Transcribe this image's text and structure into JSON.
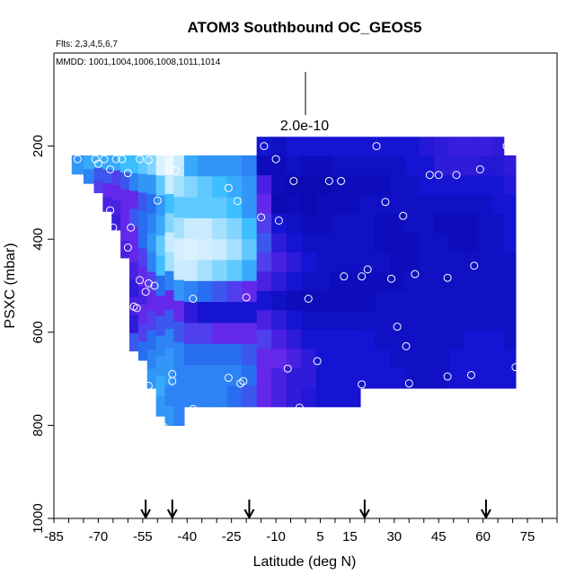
{
  "chart_data": {
    "type": "heatmap",
    "title": "ATOM3 Southbound OC_GEOS5",
    "subtitle_flights": "Flts: 2,3,4,5,6,7",
    "subtitle_dates": "MMDD: 1001,1004,1006,1008,1011,1014",
    "xlabel": "Latitude (deg N)",
    "ylabel": "PSXC (mbar)",
    "xlim": [
      -85,
      85
    ],
    "ylim": [
      1000,
      0
    ],
    "x_ticks": [
      -85,
      -70,
      -55,
      -40,
      -25,
      -10,
      5,
      15,
      30,
      45,
      60,
      75
    ],
    "x_tick_labels": [
      "-85",
      "-70",
      "-55",
      "-40",
      "-25",
      "-10",
      "5",
      "15",
      "30",
      "45",
      "60",
      "75"
    ],
    "x_minor_step": 5,
    "y_ticks": [
      200,
      400,
      600,
      800,
      1000
    ],
    "y_tick_labels": [
      "200",
      "400",
      "600",
      "800",
      "1000"
    ],
    "scale_label": "2.0e-10",
    "arrows_lat": [
      -54,
      -45,
      -19,
      20,
      61
    ],
    "columns": [
      {
        "lat": -77,
        "top": 220,
        "bottom": 260,
        "vals": [
          0.55
        ]
      },
      {
        "lat": -73,
        "top": 220,
        "bottom": 280,
        "vals": [
          0.6,
          0.5
        ]
      },
      {
        "lat": -70,
        "top": 220,
        "bottom": 300,
        "vals": [
          0.6,
          0.4,
          0.35
        ]
      },
      {
        "lat": -67,
        "top": 220,
        "bottom": 340,
        "vals": [
          0.6,
          0.4,
          0.3,
          0.25
        ]
      },
      {
        "lat": -64,
        "top": 220,
        "bottom": 380,
        "vals": [
          0.6,
          0.35,
          0.3,
          0.25,
          0.22
        ]
      },
      {
        "lat": -61,
        "top": 220,
        "bottom": 440,
        "vals": [
          0.65,
          0.4,
          0.3,
          0.3,
          0.3,
          0.25
        ]
      },
      {
        "lat": -58,
        "top": 220,
        "bottom": 640,
        "vals": [
          0.65,
          0.5,
          0.3,
          0.4,
          0.3,
          0.3,
          0.25,
          0.2,
          0.25,
          0.2,
          0.4
        ]
      },
      {
        "lat": -55,
        "top": 220,
        "bottom": 660,
        "vals": [
          0.7,
          0.55,
          0.4,
          0.45,
          0.45,
          0.35,
          0.3,
          0.25,
          0.3,
          0.35,
          0.45
        ]
      },
      {
        "lat": -52,
        "top": 220,
        "bottom": 720,
        "vals": [
          0.75,
          0.55,
          0.45,
          0.5,
          0.55,
          0.5,
          0.35,
          0.3,
          0.35,
          0.45,
          0.5,
          0.55
        ]
      },
      {
        "lat": -49,
        "top": 220,
        "bottom": 780,
        "vals": [
          0.9,
          0.7,
          0.55,
          0.6,
          0.7,
          0.65,
          0.45,
          0.3,
          0.4,
          0.5,
          0.55,
          0.6,
          0.55
        ]
      },
      {
        "lat": -46,
        "top": 220,
        "bottom": 800,
        "vals": [
          0.95,
          0.85,
          0.65,
          0.75,
          0.85,
          0.8,
          0.5,
          0.3,
          0.4,
          0.5,
          0.55,
          0.55,
          0.5,
          0.55
        ]
      },
      {
        "lat": -43,
        "top": 220,
        "bottom": 800,
        "vals": [
          0.85,
          0.8,
          0.7,
          0.8,
          0.88,
          0.85,
          0.55,
          0.3,
          0.4,
          0.5,
          0.5,
          0.5,
          0.5
        ]
      },
      {
        "lat": -39,
        "top": 220,
        "bottom": 760,
        "vals": [
          0.6,
          0.75,
          0.7,
          0.85,
          0.9,
          0.85,
          0.5,
          0.2,
          0.35,
          0.45,
          0.5,
          0.5
        ]
      },
      {
        "lat": -34,
        "top": 220,
        "bottom": 760,
        "vals": [
          0.55,
          0.7,
          0.7,
          0.85,
          0.88,
          0.8,
          0.45,
          0.15,
          0.35,
          0.45,
          0.5,
          0.5
        ]
      },
      {
        "lat": -29,
        "top": 220,
        "bottom": 760,
        "vals": [
          0.55,
          0.65,
          0.7,
          0.8,
          0.85,
          0.75,
          0.4,
          0.15,
          0.3,
          0.45,
          0.5,
          0.5
        ]
      },
      {
        "lat": -24,
        "top": 220,
        "bottom": 760,
        "vals": [
          0.55,
          0.6,
          0.65,
          0.75,
          0.8,
          0.7,
          0.35,
          0.15,
          0.3,
          0.45,
          0.5,
          0.45
        ]
      },
      {
        "lat": -19,
        "top": 220,
        "bottom": 760,
        "vals": [
          0.5,
          0.55,
          0.55,
          0.65,
          0.7,
          0.6,
          0.3,
          0.15,
          0.3,
          0.4,
          0.45,
          0.4
        ]
      },
      {
        "lat": -14,
        "top": 180,
        "bottom": 760,
        "vals": [
          0.15,
          0.1,
          0.25,
          0.3,
          0.35,
          0.4,
          0.35,
          0.25,
          0.15,
          0.25,
          0.35,
          0.3,
          0.3,
          0.3
        ]
      },
      {
        "lat": -9,
        "top": 180,
        "bottom": 760,
        "vals": [
          0.12,
          0.1,
          0.1,
          0.08,
          0.15,
          0.2,
          0.25,
          0.2,
          0.12,
          0.2,
          0.25,
          0.3,
          0.25,
          0.25
        ]
      },
      {
        "lat": -4,
        "top": 180,
        "bottom": 760,
        "vals": [
          0.15,
          0.12,
          0.08,
          0.1,
          0.12,
          0.15,
          0.2,
          0.15,
          0.1,
          0.15,
          0.2,
          0.25,
          0.2,
          0.2
        ]
      },
      {
        "lat": 1,
        "top": 180,
        "bottom": 760,
        "vals": [
          0.15,
          0.1,
          0.08,
          0.08,
          0.1,
          0.12,
          0.15,
          0.12,
          0.1,
          0.12,
          0.15,
          0.2,
          0.2,
          0.18
        ]
      },
      {
        "lat": 6,
        "top": 180,
        "bottom": 760,
        "vals": [
          0.15,
          0.1,
          0.08,
          0.1,
          0.1,
          0.12,
          0.12,
          0.12,
          0.1,
          0.12,
          0.15,
          0.15,
          0.15,
          0.15
        ]
      },
      {
        "lat": 11,
        "top": 180,
        "bottom": 760,
        "vals": [
          0.15,
          0.12,
          0.1,
          0.1,
          0.12,
          0.12,
          0.12,
          0.1,
          0.1,
          0.12,
          0.15,
          0.15,
          0.15,
          0.15
        ]
      },
      {
        "lat": 16,
        "top": 180,
        "bottom": 760,
        "vals": [
          0.15,
          0.12,
          0.1,
          0.1,
          0.12,
          0.12,
          0.12,
          0.1,
          0.1,
          0.12,
          0.15,
          0.15,
          0.15,
          0.15
        ]
      },
      {
        "lat": 21,
        "top": 180,
        "bottom": 720,
        "vals": [
          0.15,
          0.12,
          0.1,
          0.12,
          0.12,
          0.12,
          0.12,
          0.1,
          0.1,
          0.12,
          0.15,
          0.15,
          0.15
        ]
      },
      {
        "lat": 26,
        "top": 180,
        "bottom": 720,
        "vals": [
          0.15,
          0.12,
          0.1,
          0.12,
          0.1,
          0.1,
          0.12,
          0.1,
          0.12,
          0.12,
          0.12,
          0.15,
          0.15
        ]
      },
      {
        "lat": 31,
        "top": 180,
        "bottom": 720,
        "vals": [
          0.15,
          0.12,
          0.12,
          0.12,
          0.1,
          0.1,
          0.1,
          0.1,
          0.12,
          0.12,
          0.12,
          0.12,
          0.15
        ]
      },
      {
        "lat": 36,
        "top": 180,
        "bottom": 720,
        "vals": [
          0.15,
          0.15,
          0.12,
          0.12,
          0.12,
          0.1,
          0.1,
          0.12,
          0.12,
          0.12,
          0.12,
          0.12,
          0.12
        ]
      },
      {
        "lat": 41,
        "top": 180,
        "bottom": 720,
        "vals": [
          0.18,
          0.15,
          0.15,
          0.12,
          0.12,
          0.12,
          0.12,
          0.12,
          0.12,
          0.12,
          0.12,
          0.12,
          0.12
        ]
      },
      {
        "lat": 46,
        "top": 180,
        "bottom": 720,
        "vals": [
          0.2,
          0.2,
          0.15,
          0.12,
          0.1,
          0.12,
          0.12,
          0.12,
          0.12,
          0.12,
          0.12,
          0.12,
          0.12
        ]
      },
      {
        "lat": 51,
        "top": 180,
        "bottom": 720,
        "vals": [
          0.22,
          0.2,
          0.15,
          0.12,
          0.1,
          0.1,
          0.12,
          0.12,
          0.12,
          0.12,
          0.12,
          0.15,
          0.15
        ]
      },
      {
        "lat": 56,
        "top": 180,
        "bottom": 720,
        "vals": [
          0.22,
          0.2,
          0.15,
          0.12,
          0.1,
          0.1,
          0.12,
          0.12,
          0.12,
          0.12,
          0.15,
          0.15,
          0.15
        ]
      },
      {
        "lat": 61,
        "top": 180,
        "bottom": 720,
        "vals": [
          0.22,
          0.18,
          0.15,
          0.12,
          0.12,
          0.12,
          0.12,
          0.12,
          0.12,
          0.12,
          0.15,
          0.15,
          0.15
        ]
      },
      {
        "lat": 65,
        "top": 180,
        "bottom": 720,
        "vals": [
          0.2,
          0.18,
          0.15,
          0.15,
          0.12,
          0.12,
          0.12,
          0.12,
          0.12,
          0.12,
          0.15,
          0.15,
          0.15
        ]
      },
      {
        "lat": 69,
        "top": 220,
        "bottom": 720,
        "vals": [
          0.2,
          0.18,
          0.15,
          0.15,
          0.15,
          0.12,
          0.12,
          0.12,
          0.12,
          0.12,
          0.15,
          0.15
        ]
      }
    ],
    "points": [
      [
        -82,
        228
      ],
      [
        -77,
        228
      ],
      [
        -71,
        228
      ],
      [
        -70,
        238
      ],
      [
        -68,
        228
      ],
      [
        -66,
        250
      ],
      [
        -64,
        228
      ],
      [
        -62,
        228
      ],
      [
        -60,
        258
      ],
      [
        -56,
        228
      ],
      [
        -53,
        230
      ],
      [
        -44,
        253
      ],
      [
        -50,
        317
      ],
      [
        -66,
        338
      ],
      [
        -59,
        375
      ],
      [
        -65,
        375
      ],
      [
        -60,
        418
      ],
      [
        -66,
        448
      ],
      [
        -65,
        460
      ],
      [
        -67,
        495
      ],
      [
        -62,
        480
      ],
      [
        -56,
        488
      ],
      [
        -53,
        495
      ],
      [
        -51,
        500
      ],
      [
        -54,
        513
      ],
      [
        -58,
        545
      ],
      [
        -57,
        548
      ],
      [
        -63,
        630
      ],
      [
        -62,
        672
      ],
      [
        -55,
        700
      ],
      [
        -53,
        715
      ],
      [
        -45,
        690
      ],
      [
        -45,
        705
      ],
      [
        -38,
        528
      ],
      [
        -38,
        765
      ],
      [
        -48,
        803
      ],
      [
        -26,
        290
      ],
      [
        -23,
        318
      ],
      [
        -20,
        525
      ],
      [
        -21,
        705
      ],
      [
        -22,
        710
      ],
      [
        -26,
        698
      ],
      [
        -14,
        200
      ],
      [
        -15,
        353
      ],
      [
        -10,
        228
      ],
      [
        -9,
        360
      ],
      [
        -4,
        275
      ],
      [
        -2,
        762
      ],
      [
        -6,
        678
      ],
      [
        1,
        528
      ],
      [
        4,
        662
      ],
      [
        8,
        275
      ],
      [
        12,
        275
      ],
      [
        13,
        480
      ],
      [
        19,
        712
      ],
      [
        19,
        480
      ],
      [
        21,
        465
      ],
      [
        24,
        200
      ],
      [
        27,
        320
      ],
      [
        29,
        485
      ],
      [
        31,
        588
      ],
      [
        34,
        630
      ],
      [
        35,
        710
      ],
      [
        37,
        475
      ],
      [
        33,
        350
      ],
      [
        42,
        262
      ],
      [
        45,
        262
      ],
      [
        48,
        483
      ],
      [
        51,
        262
      ],
      [
        48,
        695
      ],
      [
        56,
        692
      ],
      [
        57,
        457
      ],
      [
        59,
        250
      ],
      [
        68,
        200
      ],
      [
        71,
        675
      ]
    ]
  }
}
